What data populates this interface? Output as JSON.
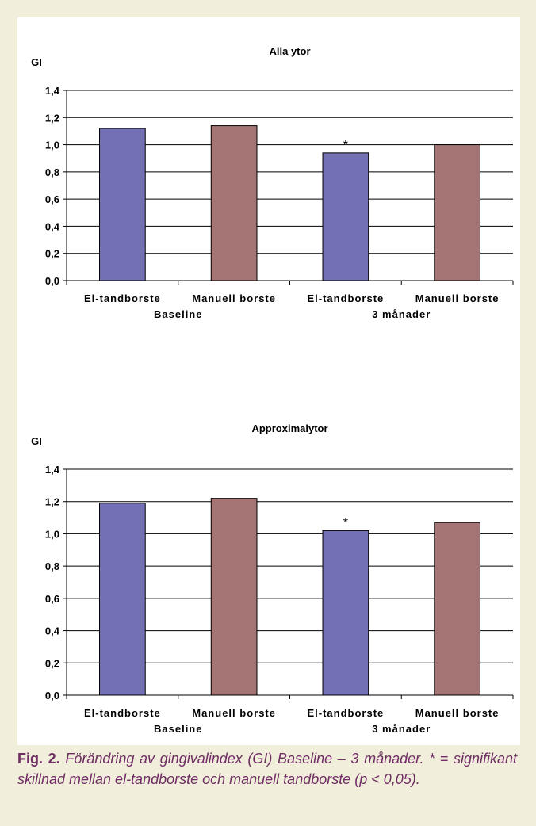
{
  "caption": {
    "label": "Fig. 2.",
    "text": "Förändring av gingivalindex (GI) Baseline – 3 månader. * = signifikant skillnad mellan el-tandborste och manuell tandborste (p < 0,05)."
  },
  "colors": {
    "el_tandborste": "#7470b5",
    "manuell_borste": "#a57475",
    "caption": "#6f2d63"
  },
  "chart_data": [
    {
      "type": "bar",
      "title": "Alla ytor",
      "ylabel": "GI",
      "ylim": [
        0,
        1.4
      ],
      "yticks": [
        "0,0",
        "0,2",
        "0,4",
        "0,6",
        "0,8",
        "1,0",
        "1,2",
        "1,4"
      ],
      "grid": true,
      "categories": [
        "El-tandborste",
        "Manuell borste",
        "El-tandborste",
        "Manuell borste"
      ],
      "groups": [
        "Baseline",
        "3 månader"
      ],
      "values": [
        1.12,
        1.14,
        0.94,
        1.0
      ],
      "annotations": [
        {
          "category_index": 2,
          "text": "*"
        }
      ]
    },
    {
      "type": "bar",
      "title": "Approximalytor",
      "ylabel": "GI",
      "ylim": [
        0,
        1.4
      ],
      "yticks": [
        "0,0",
        "0,2",
        "0,4",
        "0,6",
        "0,8",
        "1,0",
        "1,2",
        "1,4"
      ],
      "grid": true,
      "categories": [
        "El-tandborste",
        "Manuell borste",
        "El-tandborste",
        "Manuell borste"
      ],
      "groups": [
        "Baseline",
        "3 månader"
      ],
      "values": [
        1.19,
        1.22,
        1.02,
        1.07
      ],
      "annotations": [
        {
          "category_index": 2,
          "text": "*"
        }
      ]
    }
  ]
}
